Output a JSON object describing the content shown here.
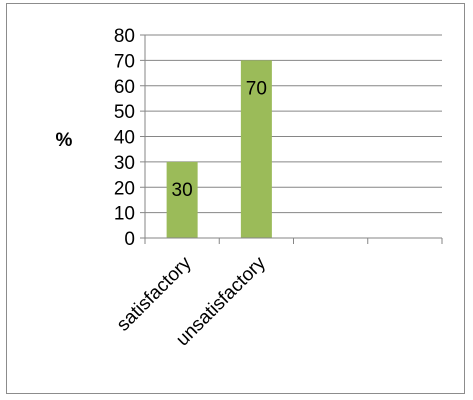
{
  "chart_data": {
    "type": "bar",
    "title": "",
    "xlabel": "",
    "ylabel": "%",
    "ylim": [
      0,
      80
    ],
    "ytick_step": 10,
    "grid": true,
    "legend": "none",
    "categories": [
      "satisfactory",
      "unsatisfactory",
      "",
      ""
    ],
    "values": [
      30,
      70,
      null,
      null
    ],
    "data_labels": [
      "30",
      "70",
      "",
      ""
    ],
    "bar_color": "#9bbb59",
    "gridline_color": "#868686"
  }
}
